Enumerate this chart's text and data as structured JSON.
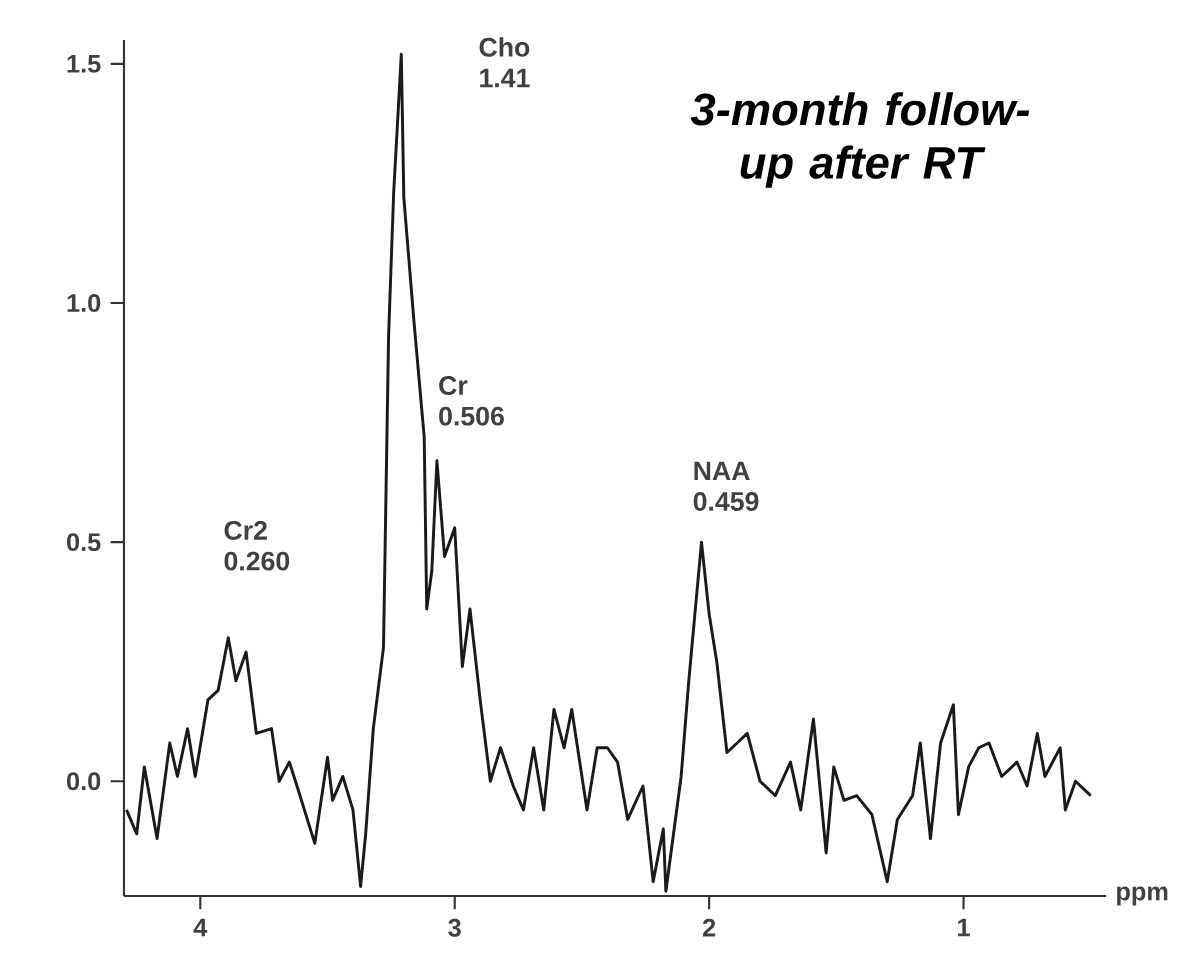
{
  "chart_data": {
    "type": "line",
    "title": "3-month follow-up after RT",
    "xlabel": "ppm",
    "x": [
      4.29,
      4.25,
      4.22,
      4.17,
      4.12,
      4.09,
      4.05,
      4.02,
      3.97,
      3.93,
      3.89,
      3.86,
      3.82,
      3.78,
      3.72,
      3.69,
      3.65,
      3.62,
      3.55,
      3.5,
      3.48,
      3.44,
      3.4,
      3.37,
      3.35,
      3.32,
      3.28,
      3.26,
      3.24,
      3.21,
      3.2,
      3.16,
      3.12,
      3.11,
      3.09,
      3.07,
      3.04,
      3.0,
      2.97,
      2.94,
      2.9,
      2.86,
      2.82,
      2.77,
      2.73,
      2.69,
      2.65,
      2.61,
      2.57,
      2.54,
      2.48,
      2.44,
      2.4,
      2.36,
      2.32,
      2.26,
      2.22,
      2.18,
      2.17,
      2.11,
      2.08,
      2.03,
      2.0,
      1.97,
      1.93,
      1.89,
      1.85,
      1.8,
      1.74,
      1.68,
      1.64,
      1.59,
      1.54,
      1.51,
      1.47,
      1.42,
      1.36,
      1.3,
      1.26,
      1.2,
      1.17,
      1.13,
      1.09,
      1.04,
      1.02,
      0.98,
      0.94,
      0.9,
      0.85,
      0.79,
      0.75,
      0.71,
      0.68,
      0.62,
      0.6,
      0.56,
      0.5
    ],
    "values": [
      -0.06,
      -0.11,
      0.03,
      -0.12,
      0.08,
      0.01,
      0.11,
      0.01,
      0.17,
      0.19,
      0.3,
      0.21,
      0.27,
      0.1,
      0.11,
      0.0,
      0.04,
      -0.01,
      -0.13,
      0.05,
      -0.04,
      0.01,
      -0.06,
      -0.22,
      -0.11,
      0.11,
      0.28,
      0.93,
      1.23,
      1.52,
      1.22,
      0.96,
      0.72,
      0.36,
      0.44,
      0.67,
      0.47,
      0.53,
      0.24,
      0.36,
      0.17,
      0.0,
      0.07,
      -0.01,
      -0.06,
      0.07,
      -0.06,
      0.15,
      0.07,
      0.15,
      -0.06,
      0.07,
      0.07,
      0.04,
      -0.08,
      -0.01,
      -0.21,
      -0.1,
      -0.23,
      0.01,
      0.21,
      0.5,
      0.35,
      0.25,
      0.06,
      0.08,
      0.1,
      0.0,
      -0.03,
      0.04,
      -0.06,
      0.13,
      -0.15,
      0.03,
      -0.04,
      -0.03,
      -0.07,
      -0.21,
      -0.08,
      -0.03,
      0.08,
      -0.12,
      0.08,
      0.16,
      -0.07,
      0.03,
      0.07,
      0.08,
      0.01,
      0.04,
      -0.01,
      0.1,
      0.01,
      0.07,
      -0.06,
      0.0,
      -0.03
    ],
    "color": "#1a1a1a",
    "xlim": [
      4.3,
      0.44
    ],
    "ylim": [
      -0.24,
      1.55
    ],
    "xticks": [
      4,
      3,
      2,
      1
    ],
    "yticks": [
      {
        "value": 0,
        "label": "0.0"
      },
      {
        "value": 0.5,
        "label": "0.5"
      },
      {
        "value": 1,
        "label": "1.0"
      },
      {
        "value": 1.5,
        "label": "1.5"
      }
    ],
    "annotations": [
      {
        "text": "Cho 1.41",
        "x": 3.21,
        "y": 1.52
      },
      {
        "text": "Cr 0.506",
        "x": 3.07,
        "y": 0.67
      },
      {
        "text": "NAA 0.459",
        "x": 2.03,
        "y": 0.5
      },
      {
        "text": "Cr2 0.260",
        "x": 3.89,
        "y": 0.3
      }
    ]
  }
}
